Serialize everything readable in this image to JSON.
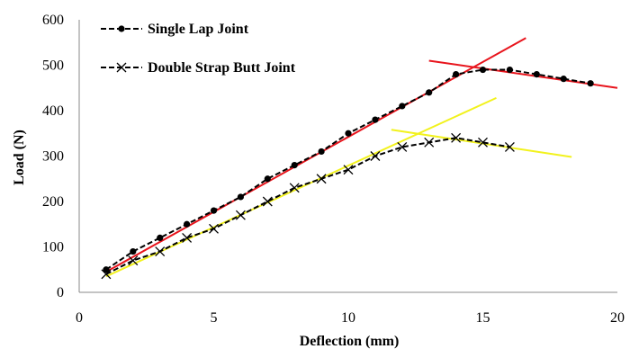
{
  "chart_data": {
    "type": "line",
    "title": "",
    "xlabel": "Deflection (mm)",
    "ylabel": "Load (N)",
    "xlim": [
      0,
      20
    ],
    "ylim": [
      0,
      600
    ],
    "x_ticks": [
      0,
      5,
      10,
      15,
      20
    ],
    "y_ticks": [
      0,
      100,
      200,
      300,
      400,
      500,
      600
    ],
    "grid": false,
    "legend_position": "top-left",
    "series": [
      {
        "name": "Single Lap Joint",
        "marker": "circle",
        "line_style": "dashed",
        "color": "#000000",
        "x": [
          1,
          2,
          3,
          4,
          5,
          6,
          7,
          8,
          9,
          10,
          11,
          12,
          13,
          14,
          15,
          16,
          17,
          18,
          19
        ],
        "y": [
          50,
          90,
          120,
          150,
          180,
          210,
          250,
          280,
          310,
          350,
          380,
          410,
          440,
          480,
          490,
          490,
          480,
          470,
          460
        ]
      },
      {
        "name": "Double Strap Butt Joint",
        "marker": "x",
        "line_style": "dashed",
        "color": "#000000",
        "x": [
          1,
          2,
          3,
          4,
          5,
          6,
          7,
          8,
          9,
          10,
          11,
          12,
          13,
          14,
          15,
          16
        ],
        "y": [
          40,
          70,
          90,
          120,
          140,
          170,
          200,
          230,
          250,
          270,
          300,
          320,
          330,
          340,
          330,
          320
        ]
      }
    ],
    "fit_lines": [
      {
        "color": "#e8141c",
        "x": [
          1,
          16.6
        ],
        "y": [
          45,
          560
        ]
      },
      {
        "color": "#e8141c",
        "x": [
          13,
          20
        ],
        "y": [
          510,
          450
        ]
      },
      {
        "color": "#f2f21d",
        "x": [
          1,
          15.5
        ],
        "y": [
          35,
          428
        ]
      },
      {
        "color": "#f2f21d",
        "x": [
          11.6,
          18.3
        ],
        "y": [
          358,
          298
        ]
      }
    ]
  }
}
